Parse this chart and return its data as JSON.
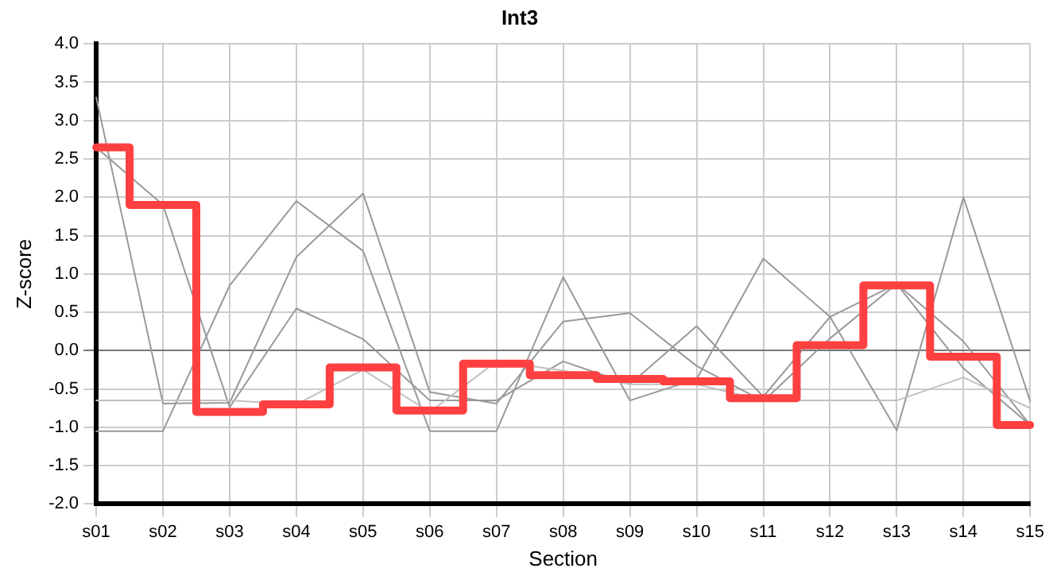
{
  "chart_data": {
    "type": "line",
    "title": "Int3",
    "xlabel": "Section",
    "ylabel": "Z-score",
    "categories": [
      "s01",
      "s02",
      "s03",
      "s04",
      "s05",
      "s06",
      "s07",
      "s08",
      "s09",
      "s10",
      "s11",
      "s12",
      "s13",
      "s14",
      "s15"
    ],
    "series": [
      {
        "color": "#999999",
        "values": [
          3.3,
          -0.69,
          -0.68,
          1.22,
          2.05,
          -0.54,
          -0.69,
          0.38,
          0.49,
          -0.2,
          -0.66,
          0.16,
          0.87,
          -0.23,
          -0.97
        ]
      },
      {
        "color": "#999999",
        "values": [
          2.65,
          1.9,
          -0.74,
          0.55,
          0.15,
          -0.65,
          -0.65,
          -0.14,
          -0.44,
          0.32,
          -0.6,
          0.44,
          0.87,
          0.12,
          -0.97
        ]
      },
      {
        "color": "#999999",
        "values": [
          -1.05,
          -1.05,
          0.85,
          1.95,
          1.3,
          -1.05,
          -1.05,
          0.96,
          -0.65,
          -0.37,
          1.2,
          0.44,
          -1.04,
          2.0,
          -0.66
        ]
      },
      {
        "color": "#c0c0c0",
        "values": [
          -0.65,
          -0.65,
          -0.65,
          -0.7,
          -0.25,
          -0.8,
          -0.14,
          -0.26,
          -0.44,
          -0.44,
          -0.65,
          -0.65,
          -0.65,
          -0.35,
          -0.75
        ]
      },
      {
        "type": "step",
        "color": "#ff4040",
        "values": [
          2.65,
          1.9,
          -0.8,
          -0.7,
          -0.22,
          -0.78,
          -0.17,
          -0.32,
          -0.37,
          -0.4,
          -0.62,
          0.07,
          0.85,
          -0.08,
          -0.97
        ]
      }
    ],
    "ylim": [
      -2,
      4
    ],
    "yticks": [
      {
        "value": -2,
        "label": "-2.0"
      },
      {
        "value": -1.5,
        "label": "-1.5"
      },
      {
        "value": -1,
        "label": "-1.0"
      },
      {
        "value": -0.5,
        "label": "-0.5"
      },
      {
        "value": 0,
        "label": "0.0"
      },
      {
        "value": 0.5,
        "label": "0.5"
      },
      {
        "value": 1,
        "label": "1.0"
      },
      {
        "value": 1.5,
        "label": "1.5"
      },
      {
        "value": 2,
        "label": "2.0"
      },
      {
        "value": 2.5,
        "label": "2.5"
      },
      {
        "value": 3,
        "label": "3.0"
      },
      {
        "value": 3.5,
        "label": "3.5"
      },
      {
        "value": 4,
        "label": "4.0"
      }
    ],
    "grid": true,
    "legend": false,
    "marker": "none",
    "line_style": "solid"
  }
}
